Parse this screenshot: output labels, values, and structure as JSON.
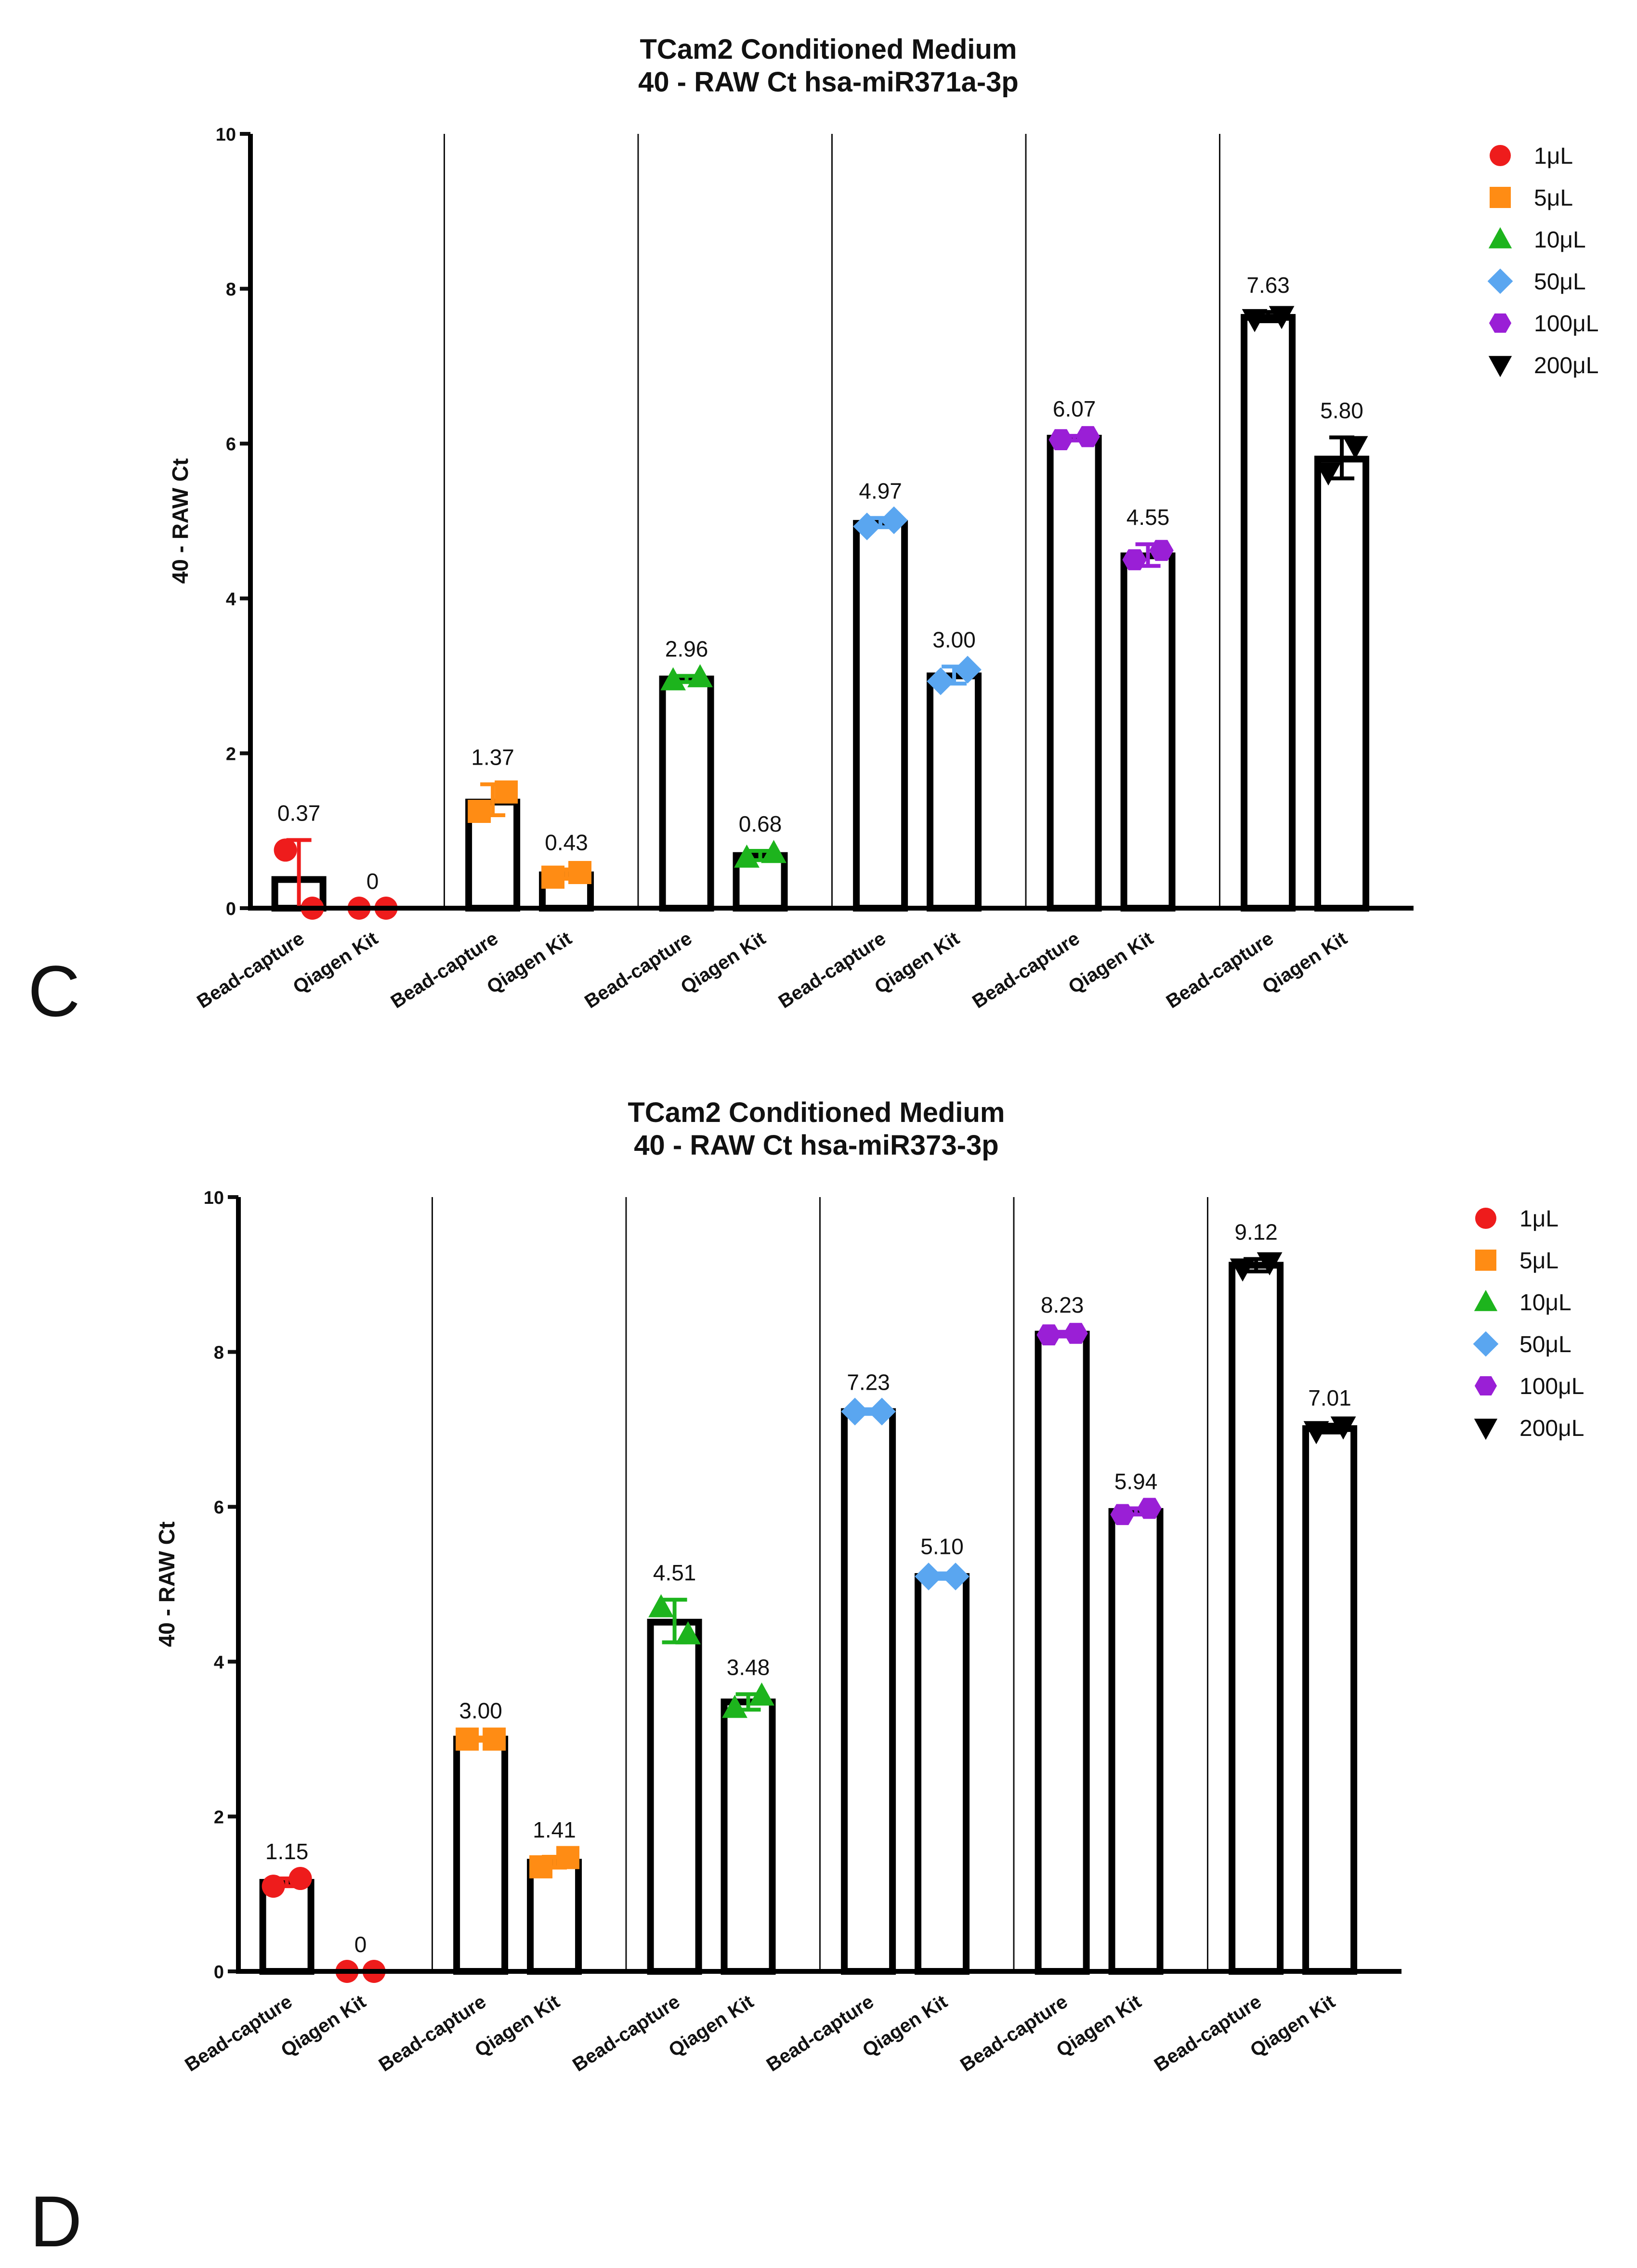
{
  "chart_data": [
    {
      "type": "bar",
      "panel_letter": "C",
      "title": "TCam2 Conditioned Medium",
      "subtitle": "40 - RAW Ct hsa-miR371a-3p",
      "ylabel": "40 - RAW Ct",
      "xlabel": "",
      "ylim": [
        0,
        10
      ],
      "yticks": [
        "0",
        "2",
        "4",
        "6",
        "8",
        "10"
      ],
      "categories": [
        "Bead-capture",
        "Qiagen Kit",
        "Bead-capture",
        "Qiagen Kit",
        "Bead-capture",
        "Qiagen Kit",
        "Bead-capture",
        "Qiagen Kit",
        "Bead-capture",
        "Qiagen Kit",
        "Bead-capture",
        "Qiagen Kit"
      ],
      "values": [
        0.37,
        0,
        1.37,
        0.43,
        2.96,
        0.68,
        4.97,
        3.0,
        6.07,
        4.55,
        7.63,
        5.8
      ],
      "value_labels": [
        "0.37",
        "0",
        "1.37",
        "0.43",
        "2.96",
        "0.68",
        "4.97",
        "3.00",
        "6.07",
        "4.55",
        "7.63",
        "5.80"
      ],
      "error_low": [
        0,
        0,
        1.2,
        0.38,
        2.92,
        0.62,
        4.92,
        2.9,
        6.04,
        4.42,
        7.58,
        5.55
      ],
      "error_high": [
        0.88,
        0,
        1.6,
        0.5,
        3.0,
        0.74,
        5.04,
        3.12,
        6.1,
        4.7,
        7.7,
        6.08
      ],
      "points": [
        [
          0.75,
          0
        ],
        [
          0,
          0
        ],
        [
          1.25,
          1.5
        ],
        [
          0.4,
          0.46
        ],
        [
          2.94,
          2.98
        ],
        [
          0.65,
          0.71
        ],
        [
          4.93,
          5.01
        ],
        [
          2.93,
          3.08
        ],
        [
          6.05,
          6.09
        ],
        [
          4.5,
          4.62
        ],
        [
          7.61,
          7.65
        ],
        [
          5.63,
          5.97
        ]
      ],
      "legend": {
        "position": "top-right",
        "entries": [
          {
            "label": "1μL",
            "marker": "circle",
            "color": "#ee1c1c"
          },
          {
            "label": "5μL",
            "marker": "square",
            "color": "#ff8c14"
          },
          {
            "label": "10μL",
            "marker": "triangle-up",
            "color": "#1db41d"
          },
          {
            "label": "50μL",
            "marker": "diamond",
            "color": "#5aa6f0"
          },
          {
            "label": "100μL",
            "marker": "hexagon",
            "color": "#9a1fd6"
          },
          {
            "label": "200μL",
            "marker": "triangle-down",
            "color": "#000000"
          }
        ]
      },
      "grid": false
    },
    {
      "type": "bar",
      "panel_letter": "D",
      "title": "TCam2 Conditioned Medium",
      "subtitle": "40 - RAW Ct hsa-miR373-3p",
      "ylabel": "40 - RAW Ct",
      "xlabel": "",
      "ylim": [
        0,
        10
      ],
      "yticks": [
        "0",
        "2",
        "4",
        "6",
        "8",
        "10"
      ],
      "categories": [
        "Bead-capture",
        "Qiagen Kit",
        "Bead-capture",
        "Qiagen Kit",
        "Bead-capture",
        "Qiagen Kit",
        "Bead-capture",
        "Qiagen Kit",
        "Bead-capture",
        "Qiagen Kit",
        "Bead-capture",
        "Qiagen Kit"
      ],
      "values": [
        1.15,
        0,
        3.0,
        1.41,
        4.51,
        3.48,
        7.23,
        5.1,
        8.23,
        5.94,
        9.12,
        7.01
      ],
      "value_labels": [
        "1.15",
        "0",
        "3.00",
        "1.41",
        "4.51",
        "3.48",
        "7.23",
        "5.10",
        "8.23",
        "5.94",
        "9.12",
        "7.01"
      ],
      "error_low": [
        1.1,
        0,
        2.98,
        1.34,
        4.25,
        3.38,
        7.2,
        5.07,
        8.2,
        5.9,
        9.04,
        6.96
      ],
      "error_high": [
        1.2,
        0,
        3.02,
        1.48,
        4.8,
        3.58,
        7.26,
        5.14,
        8.26,
        5.98,
        9.2,
        7.06
      ],
      "points": [
        [
          1.1,
          1.2
        ],
        [
          0,
          0
        ],
        [
          3.0,
          3.0
        ],
        [
          1.35,
          1.47
        ],
        [
          4.7,
          4.35
        ],
        [
          3.4,
          3.56
        ],
        [
          7.23,
          7.23
        ],
        [
          5.1,
          5.1
        ],
        [
          8.22,
          8.24
        ],
        [
          5.9,
          5.98
        ],
        [
          9.08,
          9.16
        ],
        [
          6.98,
          7.04
        ]
      ],
      "legend": {
        "position": "top-right",
        "entries": [
          {
            "label": "1μL",
            "marker": "circle",
            "color": "#ee1c1c"
          },
          {
            "label": "5μL",
            "marker": "square",
            "color": "#ff8c14"
          },
          {
            "label": "10μL",
            "marker": "triangle-up",
            "color": "#1db41d"
          },
          {
            "label": "50μL",
            "marker": "diamond",
            "color": "#5aa6f0"
          },
          {
            "label": "100μL",
            "marker": "hexagon",
            "color": "#9a1fd6"
          },
          {
            "label": "200μL",
            "marker": "triangle-down",
            "color": "#000000"
          }
        ]
      },
      "grid": false
    }
  ]
}
